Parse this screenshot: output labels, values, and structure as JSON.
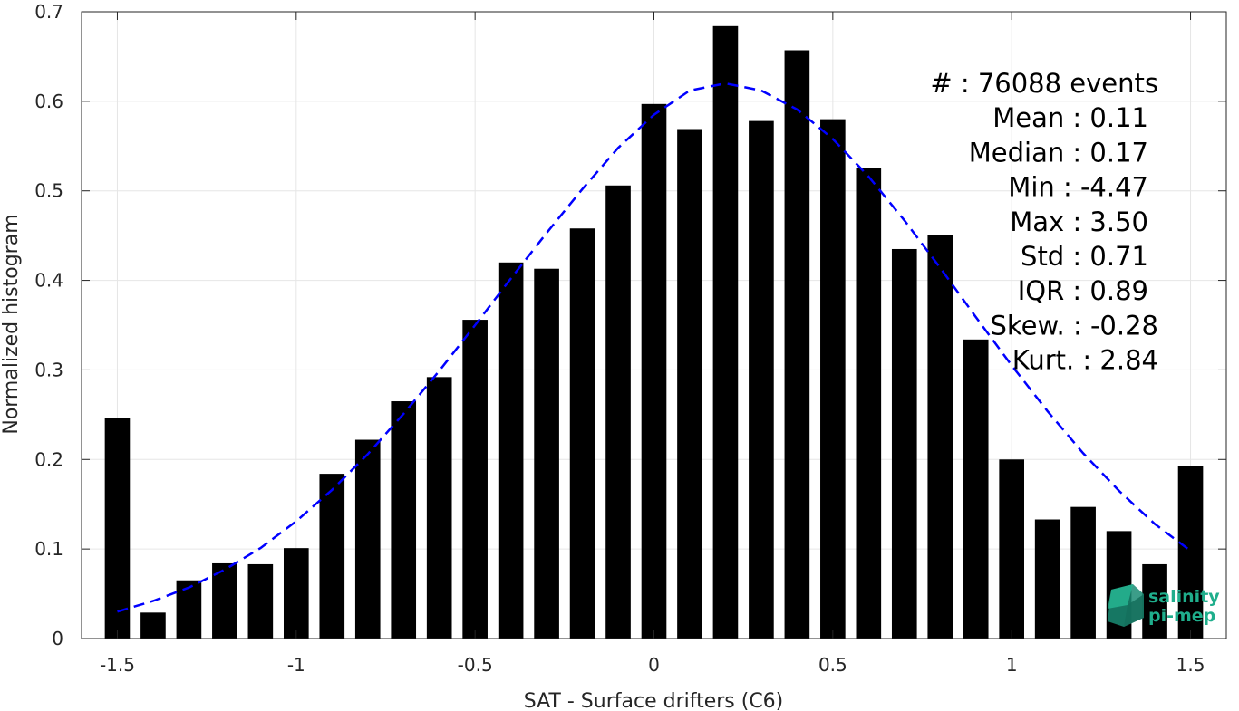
{
  "chart_data": {
    "type": "bar",
    "xlabel": "SAT - Surface drifters (C6)",
    "ylabel": "Normalized histogram",
    "xlim": [
      -1.6,
      1.6
    ],
    "ylim": [
      0,
      0.7
    ],
    "grid": true,
    "x_ticks": [
      -1.5,
      -1,
      -0.5,
      0,
      0.5,
      1,
      1.5
    ],
    "x_tick_labels": [
      "-1.5",
      "-1",
      "-0.5",
      "0",
      "0.5",
      "1",
      "1.5"
    ],
    "y_ticks": [
      0,
      0.1,
      0.2,
      0.3,
      0.4,
      0.5,
      0.6,
      0.7
    ],
    "y_tick_labels": [
      "0",
      "0.1",
      "0.2",
      "0.3",
      "0.4",
      "0.5",
      "0.6",
      "0.7"
    ],
    "bar_width": 0.07,
    "bar_color": "#000000",
    "bars": {
      "x": [
        -1.5,
        -1.4,
        -1.3,
        -1.2,
        -1.1,
        -1.0,
        -0.9,
        -0.8,
        -0.7,
        -0.6,
        -0.5,
        -0.4,
        -0.3,
        -0.2,
        -0.1,
        0.0,
        0.1,
        0.2,
        0.3,
        0.4,
        0.5,
        0.6,
        0.7,
        0.8,
        0.9,
        1.0,
        1.1,
        1.2,
        1.3,
        1.4,
        1.5
      ],
      "values": [
        0.246,
        0.029,
        0.065,
        0.084,
        0.083,
        0.101,
        0.184,
        0.222,
        0.265,
        0.292,
        0.356,
        0.42,
        0.413,
        0.458,
        0.506,
        0.597,
        0.569,
        0.684,
        0.578,
        0.657,
        0.58,
        0.526,
        0.435,
        0.451,
        0.334,
        0.2,
        0.133,
        0.147,
        0.12,
        0.083,
        0.193
      ]
    },
    "fit_curve": {
      "style": "dashed",
      "color": "#0000ff",
      "x": [
        -1.5,
        -1.4,
        -1.3,
        -1.2,
        -1.1,
        -1.0,
        -0.9,
        -0.8,
        -0.7,
        -0.6,
        -0.5,
        -0.4,
        -0.3,
        -0.2,
        -0.1,
        0.0,
        0.1,
        0.2,
        0.3,
        0.4,
        0.5,
        0.6,
        0.7,
        0.8,
        0.9,
        1.0,
        1.1,
        1.2,
        1.3,
        1.4,
        1.5
      ],
      "y": [
        0.03,
        0.042,
        0.057,
        0.077,
        0.101,
        0.131,
        0.166,
        0.206,
        0.251,
        0.299,
        0.35,
        0.402,
        0.453,
        0.502,
        0.548,
        0.585,
        0.612,
        0.62,
        0.612,
        0.591,
        0.558,
        0.516,
        0.467,
        0.414,
        0.359,
        0.305,
        0.254,
        0.207,
        0.165,
        0.128,
        0.098
      ]
    },
    "annotations": [
      "#  : 76088 events",
      "Mean : 0.11",
      "Median : 0.17",
      "Min : -4.47",
      "Max : 3.50",
      "Std : 0.71",
      "IQR : 0.89",
      "Skew. : -0.28",
      "Kurt. : 2.84"
    ]
  },
  "logo": {
    "line1": "salinity",
    "line2": "pi-mep",
    "color": "#1fae8c"
  }
}
